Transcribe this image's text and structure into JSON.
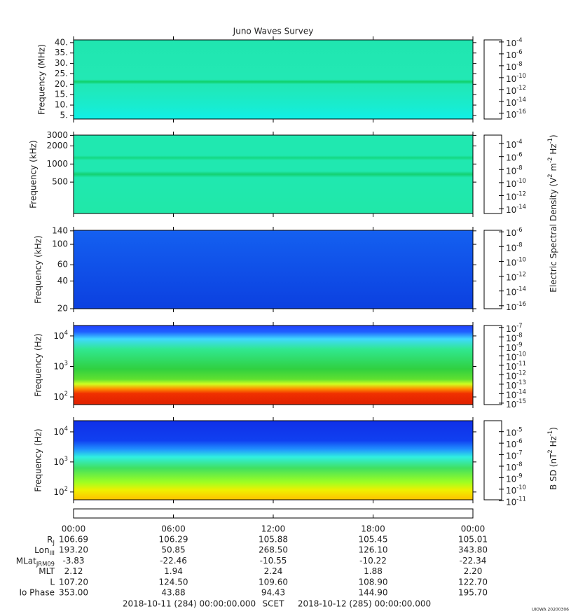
{
  "chart_data": {
    "type": "spectrogram",
    "title": "Juno Waves Survey",
    "xlim": [
      0,
      24
    ],
    "xticks": [
      {
        "value": 0,
        "label": "00:00"
      },
      {
        "value": 6,
        "label": "06:00"
      },
      {
        "value": 12,
        "label": "12:00"
      },
      {
        "value": 18,
        "label": "18:00"
      },
      {
        "value": 24,
        "label": "00:00"
      }
    ],
    "panels": [
      {
        "ylabel": "Frequency (MHz)",
        "ylog": false,
        "ylim": [
          3.3,
          41.3
        ],
        "yticks": [
          {
            "value": 5,
            "label": "5."
          },
          {
            "value": 10,
            "label": "10."
          },
          {
            "value": 15,
            "label": "15."
          },
          {
            "value": 20,
            "label": "20."
          },
          {
            "value": 25,
            "label": "25."
          },
          {
            "value": 30,
            "label": "30."
          },
          {
            "value": 35,
            "label": "35."
          },
          {
            "value": 40,
            "label": "40."
          }
        ],
        "clim": [
          1.1e-17,
          0.00022
        ],
        "cticks": [
          {
            "value": 0.0001,
            "label": "10^{-4}"
          },
          {
            "value": 1e-06,
            "label": "10^{-6}"
          },
          {
            "value": 1e-08,
            "label": "10^{-8}"
          },
          {
            "value": 1e-10,
            "label": "10^{-10}"
          },
          {
            "value": 1e-12,
            "label": "10^{-12}"
          },
          {
            "value": 1e-14,
            "label": "10^{-14}"
          },
          {
            "value": 1e-16,
            "label": "10^{-16}"
          }
        ]
      },
      {
        "ylabel": "Frequency (kHz)",
        "ylog": true,
        "ylim": [
          150,
          3030
        ],
        "yticks": [
          500,
          1000,
          2000,
          3000
        ],
        "clim": [
          1.8e-15,
          0.002
        ],
        "cticks": [
          {
            "value": 0.0001,
            "label": "10^{-4}"
          },
          {
            "value": 1e-06,
            "label": "10^{-6}"
          },
          {
            "value": 1e-08,
            "label": "10^{-8}"
          },
          {
            "value": 1e-10,
            "label": "10^{-10}"
          },
          {
            "value": 1e-12,
            "label": "10^{-12}"
          },
          {
            "value": 1e-14,
            "label": "10^{-14}"
          }
        ]
      },
      {
        "ylabel": "Frequency (kHz)",
        "ylog": true,
        "ylim": [
          20,
          142
        ],
        "yticks": [
          20,
          40,
          60,
          100,
          140
        ],
        "clim": [
          4e-17,
          1.6e-06
        ],
        "cticks": [
          {
            "value": 1e-06,
            "label": "10^{-6}"
          },
          {
            "value": 1e-08,
            "label": "10^{-8}"
          },
          {
            "value": 1e-10,
            "label": "10^{-10}"
          },
          {
            "value": 1e-12,
            "label": "10^{-12}"
          },
          {
            "value": 1e-14,
            "label": "10^{-14}"
          },
          {
            "value": 1e-16,
            "label": "10^{-16}"
          }
        ]
      },
      {
        "ylabel": "Frequency (Hz)",
        "ylog": true,
        "ylim": [
          56,
          22000
        ],
        "yticks": [
          {
            "value": 100,
            "label": "10^{2}"
          },
          {
            "value": 1000,
            "label": "10^{3}"
          },
          {
            "value": 10000,
            "label": "10^{4}"
          }
        ],
        "clim": [
          7e-16,
          1.6e-07
        ],
        "cticks": [
          {
            "value": 1e-07,
            "label": "10^{-7}"
          },
          {
            "value": 1e-08,
            "label": "10^{-8}"
          },
          {
            "value": 1e-09,
            "label": "10^{-9}"
          },
          {
            "value": 1e-10,
            "label": "10^{-10}"
          },
          {
            "value": 1e-11,
            "label": "10^{-11}"
          },
          {
            "value": 1e-12,
            "label": "10^{-12}"
          },
          {
            "value": 1e-13,
            "label": "10^{-13}"
          },
          {
            "value": 1e-14,
            "label": "10^{-14}"
          },
          {
            "value": 1e-15,
            "label": "10^{-15}"
          }
        ]
      },
      {
        "ylabel": "Frequency (Hz)",
        "ylog": true,
        "ylim": [
          55,
          23500
        ],
        "yticks": [
          {
            "value": 100,
            "label": "10^{2}"
          },
          {
            "value": 1000,
            "label": "10^{3}"
          },
          {
            "value": 10000,
            "label": "10^{4}"
          }
        ],
        "clim": [
          1.2e-11,
          9e-05
        ],
        "cticks": [
          {
            "value": 1e-05,
            "label": "10^{-5}"
          },
          {
            "value": 1e-06,
            "label": "10^{-6}"
          },
          {
            "value": 1e-07,
            "label": "10^{-7}"
          },
          {
            "value": 1e-08,
            "label": "10^{-8}"
          },
          {
            "value": 1e-09,
            "label": "10^{-9}"
          },
          {
            "value": 1e-10,
            "label": "10^{-10}"
          },
          {
            "value": 1e-11,
            "label": "10^{-11}"
          }
        ]
      }
    ],
    "colorbar_label_electric": "Electric Spectral Density (V^{2} m^{-2} Hz^{-1})",
    "colorbar_label_magnetic": "B SD (nT^{2} Hz^{-1})",
    "ephemeris": [
      {
        "label": "R_{J}",
        "values": [
          "106.69",
          "106.29",
          "105.88",
          "105.45",
          "105.01"
        ]
      },
      {
        "label": "Lon_{III}",
        "values": [
          "193.20",
          "50.85",
          "268.50",
          "126.10",
          "343.80"
        ]
      },
      {
        "label": "MLat_{JRM09}",
        "values": [
          "-3.83",
          "-22.46",
          "-10.55",
          "-10.22",
          "-22.34"
        ]
      },
      {
        "label": "MLT",
        "values": [
          "2.12",
          "1.94",
          "2.24",
          "1.88",
          "2.20"
        ]
      },
      {
        "label": "L",
        "values": [
          "107.20",
          "124.50",
          "109.60",
          "108.90",
          "122.70"
        ]
      },
      {
        "label": "Io Phase",
        "values": [
          "353.00",
          "43.88",
          "94.43",
          "144.90",
          "195.70"
        ]
      }
    ],
    "footer_start": "2018-10-11 (284) 00:00:00.000",
    "footer_scet": "SCET",
    "footer_end": "2018-10-12 (285) 00:00:00.000",
    "stamp": "UIOWA 20200306"
  }
}
